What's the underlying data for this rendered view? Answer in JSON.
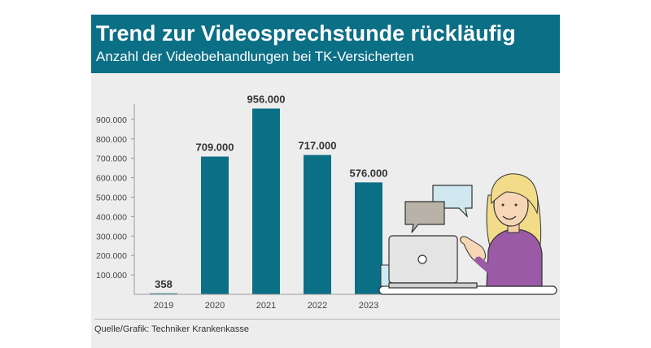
{
  "header": {
    "title": "Trend zur Videosprechstunde rückläufig",
    "subtitle": "Anzahl der Videobehandlungen bei TK-Versicherten"
  },
  "source": "Quelle/Grafik: Techniker Krankenkasse",
  "colors": {
    "header_bg": "#0b6f86",
    "bar": "#0b6f86",
    "panel_bg": "#ededed"
  },
  "illustration": {
    "icon": "woman-on-video-call-with-laptop-illustration"
  },
  "chart_data": {
    "type": "bar",
    "categories": [
      "2019",
      "2020",
      "2021",
      "2022",
      "2023"
    ],
    "values": [
      358,
      709000,
      956000,
      717000,
      576000
    ],
    "value_labels": [
      "358",
      "709.000",
      "956.000",
      "717.000",
      "576.000"
    ],
    "yticks": [
      100000,
      200000,
      300000,
      400000,
      500000,
      600000,
      700000,
      800000,
      900000
    ],
    "ytick_labels": [
      "100.000",
      "200.000",
      "300.000",
      "400.000",
      "500.000",
      "600.000",
      "700.000",
      "800.000",
      "900.000"
    ],
    "ylim": [
      0,
      960000
    ],
    "grid": false,
    "legend": "none"
  }
}
